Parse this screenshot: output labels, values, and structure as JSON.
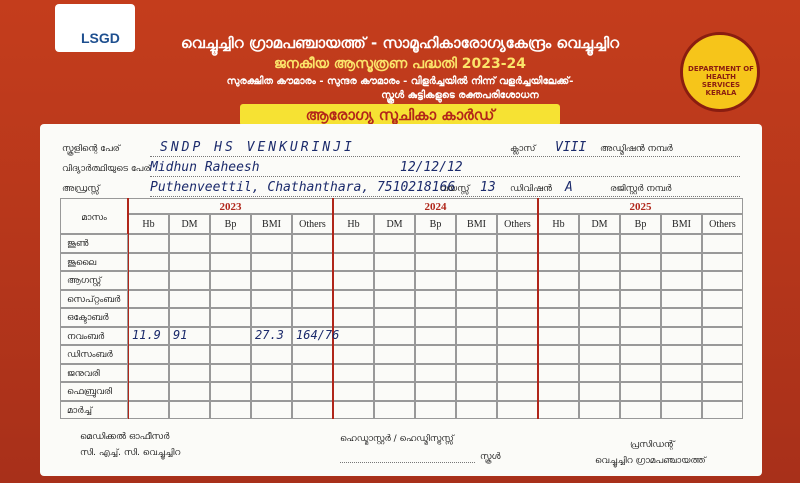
{
  "header": {
    "logo": "LSGD",
    "title": "വെച്ചൂച്ചിറ ഗ്രാമപഞ്ചായത്ത് - സാമൂഹികാരോഗ്യകേന്ദ്രം വെച്ചൂച്ചിറ",
    "subtitle": "ജനകീയ ആസൂത്രണ പദ്ധതി 2023-24",
    "slogan": "സുരക്ഷിത കൗമാരം - സുന്ദര കൗമാരം - വിളർച്ചയിൽ നിന്ന് വളർച്ചയിലേക്ക്-",
    "note": "സ്കൂൾ കുട്ടികളുടെ രക്തപരിശോധന",
    "seal": "DEPARTMENT OF HEALTH SERVICES KERALA",
    "card_title": "ആരോഗ്യ സൂചികാ കാർഡ്"
  },
  "fields": [
    {
      "label": "സ്കൂളിന്റെ പേര്",
      "value": "SNDP HS VENKURINJI"
    },
    {
      "label": "വിദ്യാർത്ഥിയുടെ പേര്",
      "value": "Midhun Raheesh"
    },
    {
      "label": "അഡ്രസ്സ്",
      "value": "Puthenveettil, Chathanthara, 7510218166"
    }
  ],
  "side_fields": {
    "dob": "12/12/12",
    "class_label": "ക്ലാസ്",
    "class": "VIII",
    "admission_label": "അഡ്മിഷൻ നമ്പർ",
    "age_label": "വയസ്സ്",
    "age": "13",
    "division_label": "ഡിവിഷൻ",
    "division": "A",
    "register_label": "രജിസ്റ്റർ നമ്പർ"
  },
  "table": {
    "month_header": "മാസം",
    "years": [
      "2023",
      "2024",
      "2025"
    ],
    "columns": [
      "Hb",
      "DM",
      "Bp",
      "BMI",
      "Others"
    ],
    "months": [
      "ജൂൺ",
      "ജൂലൈ",
      "ആഗസ്റ്റ്",
      "സെപ്റ്റംബർ",
      "ഒക്ടോബർ",
      "നവംബർ",
      "ഡിസംബർ",
      "ജനുവരി",
      "ഫെബ്രുവരി",
      "മാർച്ച്"
    ],
    "november_2023": {
      "Hb": "11.9",
      "DM": "91",
      "BMI": "27.3",
      "Others": "164/76"
    }
  },
  "footer": {
    "medical_officer": "മെഡിക്കൽ ഓഫീസർ",
    "chc": "സി. എച്ച്. സി. വെച്ചൂച്ചിറ",
    "headmaster": "ഹെഡ്മാസ്റ്റർ / ഹെഡ്മിസ്ട്രസ്സ്",
    "school": "സ്കൂൾ",
    "president": "പ്രസിഡന്റ്",
    "panchayat": "വെച്ചൂച്ചിറ ഗ്രാമപഞ്ചായത്ത്"
  }
}
